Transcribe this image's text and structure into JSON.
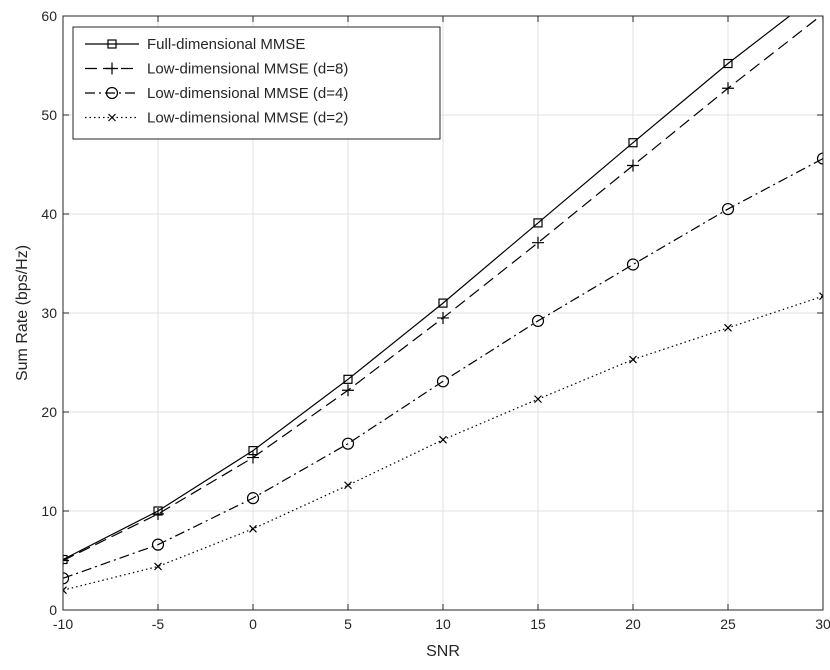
{
  "chart_data": {
    "type": "line",
    "xlabel": "SNR",
    "ylabel": "Sum Rate (bps/Hz)",
    "xlim": [
      -10,
      30
    ],
    "ylim": [
      0,
      60
    ],
    "xticks": [
      -10,
      -5,
      0,
      5,
      10,
      15,
      20,
      25,
      30
    ],
    "yticks": [
      0,
      10,
      20,
      30,
      40,
      50,
      60
    ],
    "grid": true,
    "legend_position": "top-left",
    "x": [
      -10,
      -5,
      0,
      5,
      10,
      15,
      20,
      25,
      30
    ],
    "series": [
      {
        "name": "Full-dimensional MMSE",
        "values": [
          5.1,
          10.0,
          16.1,
          23.3,
          31.0,
          39.1,
          47.2,
          55.2,
          62.6
        ],
        "line_style": "solid",
        "marker": "square",
        "color": "#000000"
      },
      {
        "name": "Low-dimensional MMSE (d=8)",
        "values": [
          5.0,
          9.7,
          15.4,
          22.2,
          29.5,
          37.1,
          44.9,
          52.7,
          60.2
        ],
        "line_style": "dashed",
        "marker": "plus",
        "color": "#000000"
      },
      {
        "name": "Low-dimensional MMSE (d=4)",
        "values": [
          3.2,
          6.6,
          11.3,
          16.8,
          23.1,
          29.2,
          34.9,
          40.5,
          45.6
        ],
        "line_style": "dashdot",
        "marker": "circle",
        "color": "#000000"
      },
      {
        "name": "Low-dimensional MMSE (d=2)",
        "values": [
          2.0,
          4.4,
          8.2,
          12.6,
          17.2,
          21.3,
          25.3,
          28.5,
          31.7
        ],
        "line_style": "dotted",
        "marker": "x",
        "color": "#000000"
      }
    ]
  }
}
